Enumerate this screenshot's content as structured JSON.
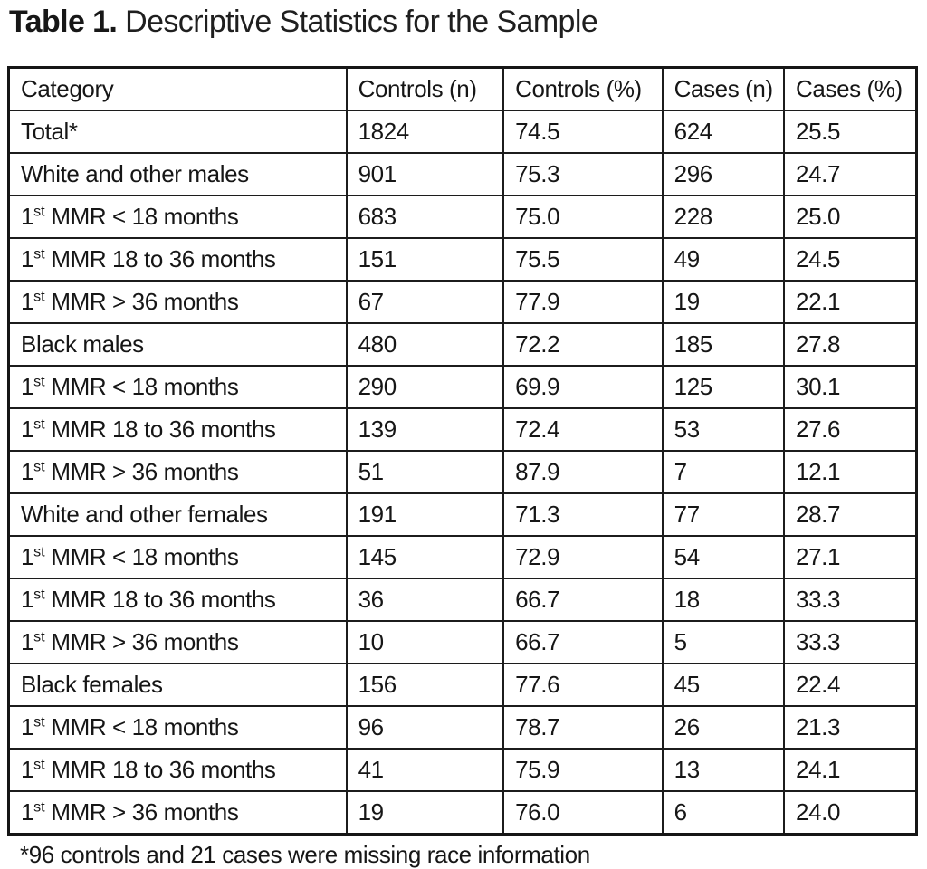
{
  "title": {
    "label": "Table 1.",
    "text": " Descriptive Statistics for the Sample"
  },
  "table": {
    "headers": [
      "Category",
      "Controls (n)",
      "Controls (%)",
      "Cases (n)",
      "Cases (%)"
    ],
    "rows": [
      {
        "label": "Total*",
        "sup": "",
        "label_after": "",
        "controls_n": "1824",
        "controls_pct": "74.5",
        "cases_n": "624",
        "cases_pct": "25.5"
      },
      {
        "label": "White and other males",
        "sup": "",
        "label_after": "",
        "controls_n": "901",
        "controls_pct": "75.3",
        "cases_n": "296",
        "cases_pct": "24.7"
      },
      {
        "label": "1",
        "sup": "st",
        "label_after": " MMR < 18 months",
        "controls_n": "683",
        "controls_pct": "75.0",
        "cases_n": "228",
        "cases_pct": "25.0"
      },
      {
        "label": "1",
        "sup": "st",
        "label_after": " MMR 18 to 36 months",
        "controls_n": "151",
        "controls_pct": "75.5",
        "cases_n": "49",
        "cases_pct": "24.5"
      },
      {
        "label": "1",
        "sup": "st",
        "label_after": " MMR > 36 months",
        "controls_n": "67",
        "controls_pct": "77.9",
        "cases_n": "19",
        "cases_pct": "22.1"
      },
      {
        "label": "Black males",
        "sup": "",
        "label_after": "",
        "controls_n": "480",
        "controls_pct": "72.2",
        "cases_n": "185",
        "cases_pct": "27.8"
      },
      {
        "label": "1",
        "sup": "st",
        "label_after": " MMR < 18 months",
        "controls_n": "290",
        "controls_pct": "69.9",
        "cases_n": "125",
        "cases_pct": "30.1"
      },
      {
        "label": "1",
        "sup": "st",
        "label_after": " MMR 18 to 36 months",
        "controls_n": "139",
        "controls_pct": "72.4",
        "cases_n": "53",
        "cases_pct": "27.6"
      },
      {
        "label": "1",
        "sup": "st",
        "label_after": " MMR > 36 months",
        "controls_n": "51",
        "controls_pct": "87.9",
        "cases_n": "7",
        "cases_pct": "12.1"
      },
      {
        "label": "White and other females",
        "sup": "",
        "label_after": "",
        "controls_n": "191",
        "controls_pct": "71.3",
        "cases_n": "77",
        "cases_pct": "28.7"
      },
      {
        "label": "1",
        "sup": "st",
        "label_after": " MMR < 18 months",
        "controls_n": "145",
        "controls_pct": "72.9",
        "cases_n": "54",
        "cases_pct": "27.1"
      },
      {
        "label": "1",
        "sup": "st",
        "label_after": " MMR 18 to 36 months",
        "controls_n": "36",
        "controls_pct": "66.7",
        "cases_n": "18",
        "cases_pct": "33.3"
      },
      {
        "label": "1",
        "sup": "st",
        "label_after": " MMR > 36 months",
        "controls_n": "10",
        "controls_pct": "66.7",
        "cases_n": "5",
        "cases_pct": "33.3"
      },
      {
        "label": "Black females",
        "sup": "",
        "label_after": "",
        "controls_n": "156",
        "controls_pct": "77.6",
        "cases_n": "45",
        "cases_pct": "22.4"
      },
      {
        "label": "1",
        "sup": "st",
        "label_after": " MMR < 18 months",
        "controls_n": "96",
        "controls_pct": "78.7",
        "cases_n": "26",
        "cases_pct": "21.3"
      },
      {
        "label": "1",
        "sup": "st",
        "label_after": " MMR 18 to 36 months",
        "controls_n": "41",
        "controls_pct": "75.9",
        "cases_n": "13",
        "cases_pct": "24.1"
      },
      {
        "label": "1",
        "sup": "st",
        "label_after": " MMR > 36 months",
        "controls_n": "19",
        "controls_pct": "76.0",
        "cases_n": "6",
        "cases_pct": "24.0"
      }
    ]
  },
  "footnote": "*96 controls and 21 cases were missing race information"
}
